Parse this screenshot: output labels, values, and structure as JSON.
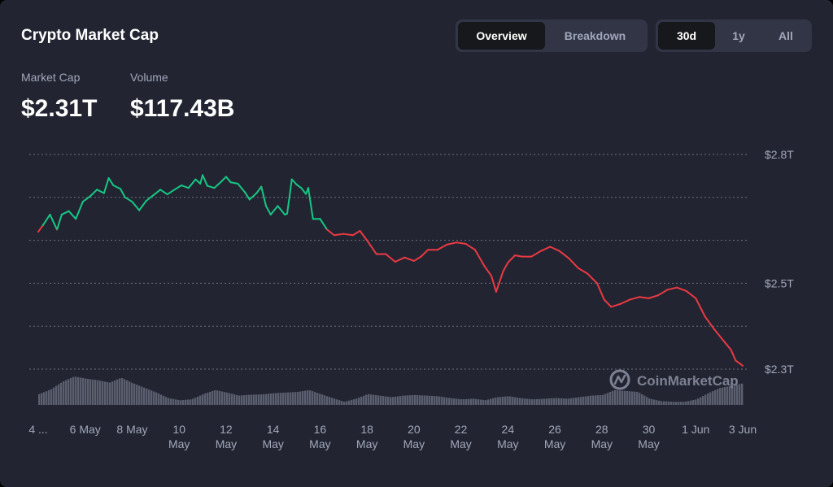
{
  "header": {
    "title": "Crypto Market Cap",
    "view_tabs": [
      {
        "label": "Overview",
        "active": true
      },
      {
        "label": "Breakdown",
        "active": false
      }
    ],
    "range_tabs": [
      {
        "label": "30d",
        "active": true
      },
      {
        "label": "1y",
        "active": false
      },
      {
        "label": "All",
        "active": false
      }
    ]
  },
  "stats": {
    "market_cap_label": "Market Cap",
    "market_cap_value": "$2.31T",
    "volume_label": "Volume",
    "volume_value": "$117.43B"
  },
  "watermark": "CoinMarketCap",
  "colors": {
    "up": "#16c784",
    "down": "#ea3943",
    "volume": "#5a5e6e"
  },
  "chart_data": {
    "type": "line",
    "y_unit": "trillion USD",
    "y_ticks": [
      {
        "value": 2.8,
        "label": "$2.8T"
      },
      {
        "value": 2.5,
        "label": "$2.5T"
      },
      {
        "value": 2.3,
        "label": "$2.3T"
      }
    ],
    "gridlines": [
      2.8,
      2.7,
      2.6,
      2.5,
      2.4,
      2.3
    ],
    "ylim": [
      2.3,
      2.8
    ],
    "xlim": [
      4.0,
      34.0
    ],
    "x_ticks": [
      {
        "x": 4,
        "line1": "4 ...",
        "line2": ""
      },
      {
        "x": 6,
        "line1": "6 May",
        "line2": ""
      },
      {
        "x": 8,
        "line1": "8 May",
        "line2": ""
      },
      {
        "x": 10,
        "line1": "10",
        "line2": "May"
      },
      {
        "x": 12,
        "line1": "12",
        "line2": "May"
      },
      {
        "x": 14,
        "line1": "14",
        "line2": "May"
      },
      {
        "x": 16,
        "line1": "16",
        "line2": "May"
      },
      {
        "x": 18,
        "line1": "18",
        "line2": "May"
      },
      {
        "x": 20,
        "line1": "20",
        "line2": "May"
      },
      {
        "x": 22,
        "line1": "22",
        "line2": "May"
      },
      {
        "x": 24,
        "line1": "24",
        "line2": "May"
      },
      {
        "x": 26,
        "line1": "26",
        "line2": "May"
      },
      {
        "x": 28,
        "line1": "28",
        "line2": "May"
      },
      {
        "x": 30,
        "line1": "30",
        "line2": "May"
      },
      {
        "x": 32,
        "line1": "1 Jun",
        "line2": ""
      },
      {
        "x": 34,
        "line1": "3 Jun",
        "line2": ""
      }
    ],
    "baseline": 2.63,
    "series": [
      {
        "points": [
          [
            4.0,
            2.62
          ],
          [
            4.2,
            2.635
          ],
          [
            4.5,
            2.66
          ],
          [
            4.8,
            2.625
          ],
          [
            5.0,
            2.66
          ],
          [
            5.3,
            2.668
          ],
          [
            5.6,
            2.65
          ],
          [
            5.9,
            2.69
          ],
          [
            6.2,
            2.702
          ],
          [
            6.5,
            2.718
          ],
          [
            6.8,
            2.71
          ],
          [
            7.0,
            2.745
          ],
          [
            7.2,
            2.728
          ],
          [
            7.5,
            2.72
          ],
          [
            7.7,
            2.7
          ],
          [
            8.0,
            2.69
          ],
          [
            8.3,
            2.67
          ],
          [
            8.6,
            2.692
          ],
          [
            8.9,
            2.705
          ],
          [
            9.2,
            2.718
          ],
          [
            9.5,
            2.707
          ],
          [
            9.8,
            2.718
          ],
          [
            10.1,
            2.728
          ],
          [
            10.4,
            2.722
          ],
          [
            10.7,
            2.742
          ],
          [
            10.9,
            2.732
          ],
          [
            11.0,
            2.752
          ],
          [
            11.2,
            2.727
          ],
          [
            11.5,
            2.722
          ],
          [
            11.8,
            2.737
          ],
          [
            12.0,
            2.748
          ],
          [
            12.2,
            2.735
          ],
          [
            12.5,
            2.732
          ],
          [
            12.8,
            2.712
          ],
          [
            13.0,
            2.695
          ],
          [
            13.3,
            2.71
          ],
          [
            13.5,
            2.725
          ],
          [
            13.7,
            2.68
          ],
          [
            13.9,
            2.66
          ],
          [
            14.2,
            2.68
          ],
          [
            14.5,
            2.66
          ],
          [
            14.6,
            2.662
          ],
          [
            14.8,
            2.742
          ],
          [
            15.0,
            2.73
          ],
          [
            15.2,
            2.722
          ],
          [
            15.4,
            2.708
          ],
          [
            15.5,
            2.722
          ],
          [
            15.7,
            2.65
          ],
          [
            16.0,
            2.65
          ],
          [
            16.3,
            2.625
          ],
          [
            16.6,
            2.612
          ],
          [
            17.0,
            2.615
          ],
          [
            17.4,
            2.612
          ],
          [
            17.7,
            2.622
          ],
          [
            18.0,
            2.6
          ],
          [
            18.4,
            2.568
          ],
          [
            18.8,
            2.568
          ],
          [
            19.2,
            2.55
          ],
          [
            19.6,
            2.56
          ],
          [
            20.0,
            2.552
          ],
          [
            20.3,
            2.562
          ],
          [
            20.6,
            2.578
          ],
          [
            21.0,
            2.578
          ],
          [
            21.4,
            2.59
          ],
          [
            21.8,
            2.595
          ],
          [
            22.2,
            2.592
          ],
          [
            22.6,
            2.578
          ],
          [
            23.0,
            2.54
          ],
          [
            23.3,
            2.517
          ],
          [
            23.5,
            2.48
          ],
          [
            23.8,
            2.528
          ],
          [
            24.0,
            2.548
          ],
          [
            24.3,
            2.565
          ],
          [
            24.6,
            2.562
          ],
          [
            25.0,
            2.562
          ],
          [
            25.4,
            2.575
          ],
          [
            25.8,
            2.585
          ],
          [
            26.2,
            2.575
          ],
          [
            26.6,
            2.558
          ],
          [
            27.0,
            2.535
          ],
          [
            27.4,
            2.522
          ],
          [
            27.8,
            2.5
          ],
          [
            28.1,
            2.462
          ],
          [
            28.4,
            2.445
          ],
          [
            28.8,
            2.452
          ],
          [
            29.2,
            2.462
          ],
          [
            29.6,
            2.468
          ],
          [
            30.0,
            2.465
          ],
          [
            30.4,
            2.472
          ],
          [
            30.8,
            2.485
          ],
          [
            31.2,
            2.49
          ],
          [
            31.6,
            2.482
          ],
          [
            32.0,
            2.465
          ],
          [
            32.4,
            2.422
          ],
          [
            32.8,
            2.392
          ],
          [
            33.2,
            2.365
          ],
          [
            33.5,
            2.345
          ],
          [
            33.7,
            2.32
          ],
          [
            34.0,
            2.308
          ]
        ]
      }
    ],
    "volume": [
      [
        4.0,
        0.35
      ],
      [
        4.5,
        0.5
      ],
      [
        5.0,
        0.75
      ],
      [
        5.5,
        0.92
      ],
      [
        6.0,
        0.85
      ],
      [
        6.5,
        0.8
      ],
      [
        7.0,
        0.72
      ],
      [
        7.5,
        0.88
      ],
      [
        8.0,
        0.7
      ],
      [
        8.5,
        0.55
      ],
      [
        9.0,
        0.4
      ],
      [
        9.5,
        0.22
      ],
      [
        10.0,
        0.15
      ],
      [
        10.5,
        0.18
      ],
      [
        11.0,
        0.35
      ],
      [
        11.5,
        0.48
      ],
      [
        12.0,
        0.4
      ],
      [
        12.5,
        0.3
      ],
      [
        13.0,
        0.33
      ],
      [
        13.5,
        0.34
      ],
      [
        14.0,
        0.38
      ],
      [
        14.5,
        0.4
      ],
      [
        15.0,
        0.42
      ],
      [
        15.5,
        0.48
      ],
      [
        16.0,
        0.35
      ],
      [
        16.5,
        0.22
      ],
      [
        17.0,
        0.1
      ],
      [
        17.5,
        0.2
      ],
      [
        18.0,
        0.35
      ],
      [
        18.5,
        0.3
      ],
      [
        19.0,
        0.25
      ],
      [
        19.5,
        0.3
      ],
      [
        20.0,
        0.32
      ],
      [
        20.5,
        0.3
      ],
      [
        21.0,
        0.28
      ],
      [
        21.5,
        0.22
      ],
      [
        22.0,
        0.18
      ],
      [
        22.5,
        0.2
      ],
      [
        23.0,
        0.15
      ],
      [
        23.5,
        0.25
      ],
      [
        24.0,
        0.28
      ],
      [
        24.5,
        0.22
      ],
      [
        25.0,
        0.18
      ],
      [
        25.5,
        0.2
      ],
      [
        26.0,
        0.22
      ],
      [
        26.5,
        0.2
      ],
      [
        27.0,
        0.25
      ],
      [
        27.5,
        0.3
      ],
      [
        28.0,
        0.32
      ],
      [
        28.5,
        0.48
      ],
      [
        29.0,
        0.45
      ],
      [
        29.5,
        0.42
      ],
      [
        30.0,
        0.2
      ],
      [
        30.5,
        0.12
      ],
      [
        31.0,
        0.1
      ],
      [
        31.5,
        0.1
      ],
      [
        32.0,
        0.18
      ],
      [
        32.5,
        0.38
      ],
      [
        33.0,
        0.55
      ],
      [
        33.5,
        0.62
      ],
      [
        34.0,
        0.7
      ]
    ]
  }
}
